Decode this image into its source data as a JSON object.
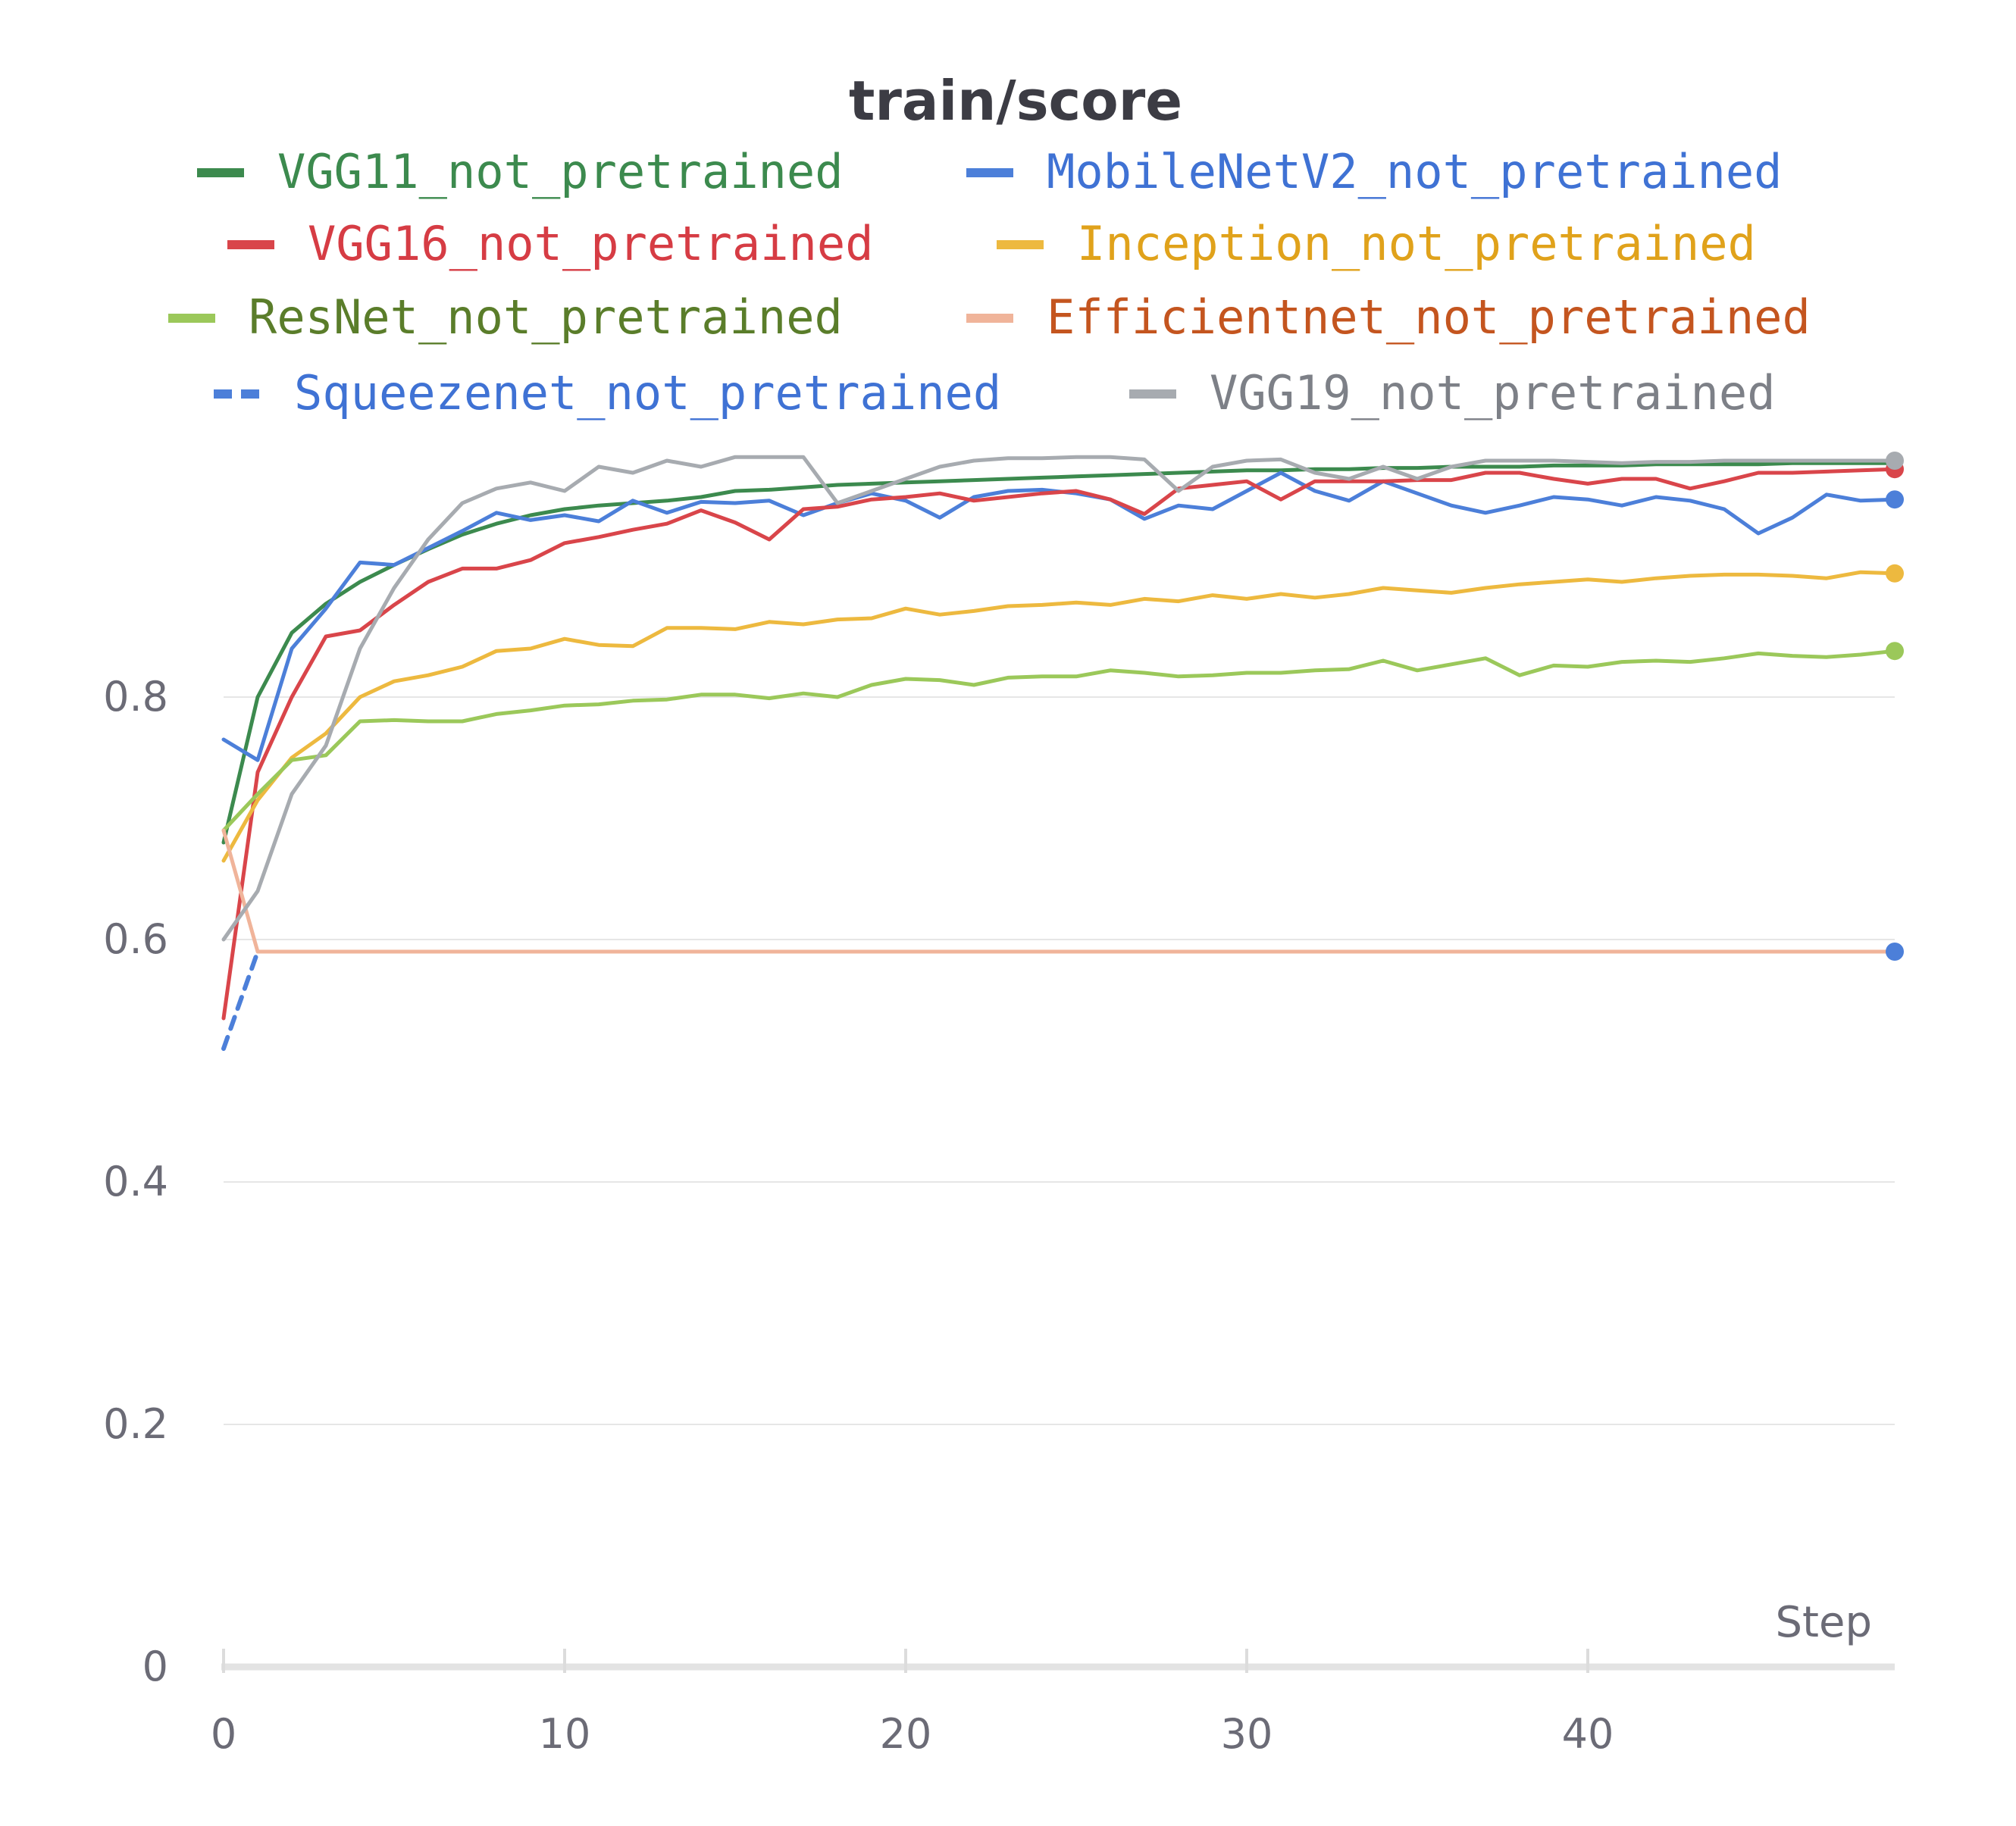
{
  "chart_data": {
    "type": "line",
    "title": "train/score",
    "xlabel": "Step",
    "ylabel": "",
    "xlim": [
      0,
      49
    ],
    "ylim": [
      0,
      1.0
    ],
    "xticks": [
      "0",
      "10",
      "20",
      "30",
      "40"
    ],
    "yticks": [
      "0",
      "0.2",
      "0.4",
      "0.6",
      "0.8"
    ],
    "grid": true,
    "legend_position": "top",
    "series": [
      {
        "name": "VGG11_not_pretrained",
        "color": "#3c8a4e",
        "label_color": "#3c8a4e",
        "dashed": false,
        "end_marker": false,
        "values": [
          0.68,
          0.8,
          0.853,
          0.877,
          0.895,
          0.909,
          0.922,
          0.934,
          0.943,
          0.95,
          0.955,
          0.958,
          0.96,
          0.962,
          0.965,
          0.97,
          0.971,
          0.973,
          0.975,
          0.976,
          0.977,
          0.978,
          0.979,
          0.98,
          0.981,
          0.982,
          0.983,
          0.984,
          0.985,
          0.986,
          0.987,
          0.987,
          0.988,
          0.988,
          0.989,
          0.989,
          0.99,
          0.99,
          0.99,
          0.991,
          0.991,
          0.991,
          0.992,
          0.992,
          0.992,
          0.992,
          0.993,
          0.993,
          0.993,
          0.993
        ]
      },
      {
        "name": "MobileNetV2_not_pretrained",
        "color": "#4c7fd9",
        "label_color": "#3f72d4",
        "dashed": false,
        "end_marker": true,
        "values": [
          0.765,
          0.748,
          0.84,
          0.873,
          0.911,
          0.909,
          0.923,
          0.937,
          0.952,
          0.946,
          0.95,
          0.945,
          0.962,
          0.952,
          0.961,
          0.96,
          0.962,
          0.95,
          0.96,
          0.968,
          0.962,
          0.948,
          0.965,
          0.97,
          0.971,
          0.968,
          0.963,
          0.947,
          0.958,
          0.955,
          0.97,
          0.985,
          0.97,
          0.962,
          0.978,
          0.968,
          0.958,
          0.952,
          0.958,
          0.965,
          0.963,
          0.958,
          0.965,
          0.962,
          0.955,
          0.935,
          0.948,
          0.967,
          0.962,
          0.963
        ]
      },
      {
        "name": "VGG16_not_pretrained",
        "color": "#d9454a",
        "label_color": "#d63c44",
        "dashed": false,
        "end_marker": true,
        "values": [
          0.535,
          0.738,
          0.8,
          0.85,
          0.855,
          0.876,
          0.895,
          0.906,
          0.906,
          0.913,
          0.927,
          0.932,
          0.938,
          0.943,
          0.954,
          0.944,
          0.93,
          0.955,
          0.957,
          0.963,
          0.965,
          0.968,
          0.962,
          0.965,
          0.968,
          0.97,
          0.963,
          0.951,
          0.972,
          0.975,
          0.978,
          0.963,
          0.978,
          0.978,
          0.978,
          0.979,
          0.979,
          0.985,
          0.985,
          0.98,
          0.976,
          0.98,
          0.98,
          0.972,
          0.978,
          0.985,
          0.985,
          0.986,
          0.987,
          0.988
        ]
      },
      {
        "name": "Inception_not_pretrained",
        "color": "#edb93f",
        "label_color": "#e0a21b",
        "dashed": false,
        "end_marker": true,
        "values": [
          0.665,
          0.715,
          0.75,
          0.77,
          0.8,
          0.813,
          0.818,
          0.825,
          0.838,
          0.84,
          0.848,
          0.843,
          0.842,
          0.857,
          0.857,
          0.856,
          0.862,
          0.86,
          0.864,
          0.865,
          0.873,
          0.868,
          0.871,
          0.875,
          0.876,
          0.878,
          0.876,
          0.881,
          0.879,
          0.884,
          0.881,
          0.885,
          0.882,
          0.885,
          0.89,
          0.888,
          0.886,
          0.89,
          0.893,
          0.895,
          0.897,
          0.895,
          0.898,
          0.9,
          0.901,
          0.901,
          0.9,
          0.898,
          0.903,
          0.902
        ]
      },
      {
        "name": "ResNet_not_pretrained",
        "color": "#9bc85a",
        "label_color": "#5a7d2a",
        "dashed": false,
        "end_marker": true,
        "values": [
          0.69,
          0.72,
          0.748,
          0.752,
          0.78,
          0.781,
          0.78,
          0.78,
          0.786,
          0.789,
          0.793,
          0.794,
          0.797,
          0.798,
          0.802,
          0.802,
          0.799,
          0.803,
          0.8,
          0.81,
          0.815,
          0.814,
          0.81,
          0.816,
          0.817,
          0.817,
          0.822,
          0.82,
          0.817,
          0.818,
          0.82,
          0.82,
          0.822,
          0.823,
          0.83,
          0.822,
          0.827,
          0.832,
          0.818,
          0.826,
          0.825,
          0.829,
          0.83,
          0.829,
          0.832,
          0.836,
          0.834,
          0.833,
          0.835,
          0.838
        ]
      },
      {
        "name": "Efficientnet_not_pretrained",
        "color": "#f0b49a",
        "label_color": "#c4551f",
        "dashed": false,
        "end_marker": false,
        "values": [
          0.69,
          0.59,
          0.59,
          0.59,
          0.59,
          0.59,
          0.59,
          0.59,
          0.59,
          0.59,
          0.59,
          0.59,
          0.59,
          0.59,
          0.59,
          0.59,
          0.59,
          0.59,
          0.59,
          0.59,
          0.59,
          0.59,
          0.59,
          0.59,
          0.59,
          0.59,
          0.59,
          0.59,
          0.59,
          0.59,
          0.59,
          0.59,
          0.59,
          0.59,
          0.59,
          0.59,
          0.59,
          0.59,
          0.59,
          0.59,
          0.59,
          0.59,
          0.59,
          0.59,
          0.59,
          0.59,
          0.59,
          0.59,
          0.59,
          0.59
        ]
      },
      {
        "name": "Squeezenet_not_pretrained",
        "color": "#4c7fd9",
        "label_color": "#3f72d4",
        "dashed": true,
        "end_marker": true,
        "x": [
          0,
          1
        ],
        "values": [
          0.51,
          0.59
        ],
        "end_value": 0.59
      },
      {
        "name": "VGG19_not_pretrained",
        "color": "#a7abb0",
        "label_color": "#7d8087",
        "dashed": false,
        "end_marker": true,
        "values": [
          0.6,
          0.64,
          0.72,
          0.76,
          0.84,
          0.89,
          0.93,
          0.96,
          0.972,
          0.977,
          0.97,
          0.99,
          0.985,
          0.995,
          0.99,
          0.998,
          0.998,
          0.998,
          0.96,
          0.97,
          0.98,
          0.99,
          0.995,
          0.997,
          0.997,
          0.998,
          0.998,
          0.996,
          0.97,
          0.99,
          0.995,
          0.996,
          0.985,
          0.98,
          0.99,
          0.98,
          0.99,
          0.995,
          0.995,
          0.995,
          0.994,
          0.993,
          0.994,
          0.994,
          0.995,
          0.995,
          0.995,
          0.995,
          0.995,
          0.995
        ]
      }
    ]
  }
}
